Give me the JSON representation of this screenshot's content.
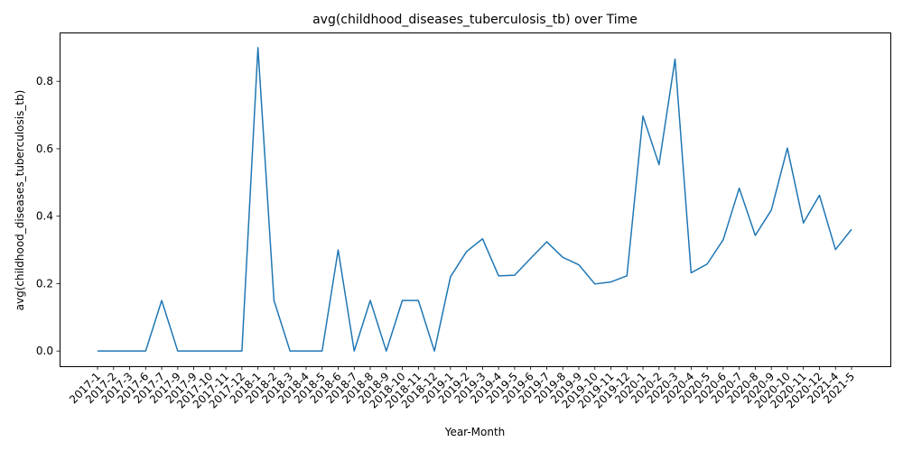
{
  "chart_data": {
    "type": "line",
    "title": "avg(childhood_diseases_tuberculosis_tb) over Time",
    "xlabel": "Year-Month",
    "ylabel": "avg(childhood_diseases_tuberculosis_tb)",
    "categories": [
      "2017-1",
      "2017-2",
      "2017-3",
      "2017-6",
      "2017-7",
      "2017-9",
      "2017-9",
      "2017-10",
      "2017-11",
      "2017-12",
      "2018-1",
      "2018-2",
      "2018-3",
      "2018-4",
      "2018-5",
      "2018-6",
      "2018-7",
      "2018-8",
      "2018-9",
      "2018-10",
      "2018-11",
      "2018-12",
      "2019-1",
      "2019-2",
      "2019-3",
      "2019-4",
      "2019-5",
      "2019-6",
      "2019-7",
      "2019-8",
      "2019-9",
      "2019-10",
      "2019-11",
      "2019-12",
      "2020-1",
      "2020-2",
      "2020-3",
      "2020-4",
      "2020-5",
      "2020-6",
      "2020-7",
      "2020-8",
      "2020-9",
      "2020-10",
      "2020-11",
      "2020-12",
      "2021-4",
      "2021-5"
    ],
    "series": [
      {
        "values": [
          0,
          0,
          0,
          0,
          0.15,
          0,
          0,
          0,
          0,
          0,
          0.9,
          0.15,
          0,
          0,
          0,
          0.3,
          0,
          0.15,
          0,
          0.15,
          0.15,
          0,
          0.22,
          0.295,
          0.333,
          0.223,
          0.225,
          0.275,
          0.324,
          0.278,
          0.256,
          0.199,
          0.205,
          0.223,
          0.697,
          0.553,
          0.866,
          0.232,
          0.258,
          0.33,
          0.483,
          0.343,
          0.418,
          0.602,
          0.38,
          0.462,
          0.301,
          0.361
        ],
        "color": "#1f77b4"
      }
    ],
    "ylim": [
      -0.045,
      0.945
    ],
    "yticks": [
      0.0,
      0.2,
      0.4,
      0.6,
      0.8
    ],
    "ytick_labels": [
      "0.0",
      "0.2",
      "0.4",
      "0.6",
      "0.8"
    ],
    "grid": false,
    "legend": "none"
  }
}
